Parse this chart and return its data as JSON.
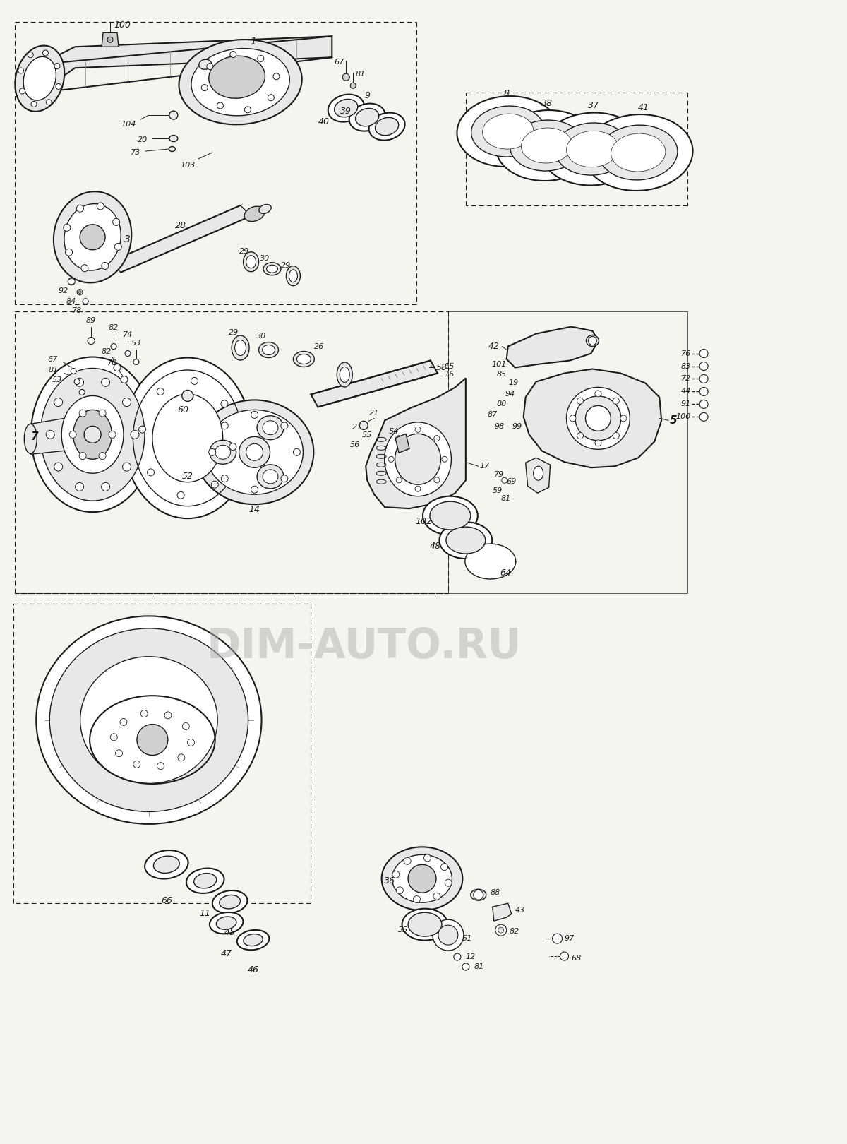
{
  "bg_color": "#f5f5f0",
  "fig_width": 12.0,
  "fig_height": 16.2,
  "dpi": 100,
  "watermark_text": "DIM-AUTO.RU",
  "watermark_color": "#b0b0b0",
  "watermark_alpha": 0.5,
  "line_color": "#1a1a1a",
  "fill_light": "#e8e8e8",
  "fill_mid": "#d0d0d0",
  "fill_dark": "#b8b8b8"
}
